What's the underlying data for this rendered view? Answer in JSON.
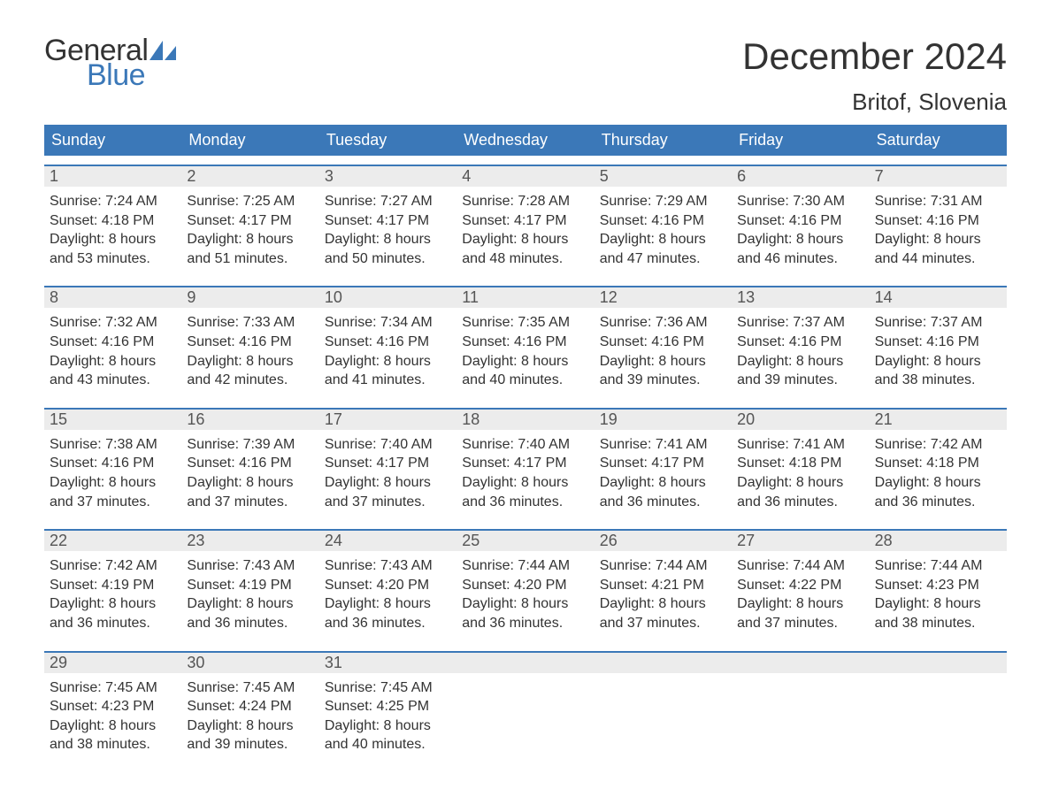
{
  "logo": {
    "text1": "General",
    "text2": "Blue"
  },
  "title": "December 2024",
  "location": "Britof, Slovenia",
  "colors": {
    "header_bg": "#3b78b8",
    "header_text": "#ffffff",
    "daynum_bg": "#ececec",
    "accent_border": "#3b78b8",
    "body_text": "#333333",
    "logo_blue": "#3b78b8"
  },
  "dayNames": [
    "Sunday",
    "Monday",
    "Tuesday",
    "Wednesday",
    "Thursday",
    "Friday",
    "Saturday"
  ],
  "weeks": [
    [
      {
        "n": "1",
        "sr": "Sunrise: 7:24 AM",
        "ss": "Sunset: 4:18 PM",
        "d1": "Daylight: 8 hours",
        "d2": "and 53 minutes."
      },
      {
        "n": "2",
        "sr": "Sunrise: 7:25 AM",
        "ss": "Sunset: 4:17 PM",
        "d1": "Daylight: 8 hours",
        "d2": "and 51 minutes."
      },
      {
        "n": "3",
        "sr": "Sunrise: 7:27 AM",
        "ss": "Sunset: 4:17 PM",
        "d1": "Daylight: 8 hours",
        "d2": "and 50 minutes."
      },
      {
        "n": "4",
        "sr": "Sunrise: 7:28 AM",
        "ss": "Sunset: 4:17 PM",
        "d1": "Daylight: 8 hours",
        "d2": "and 48 minutes."
      },
      {
        "n": "5",
        "sr": "Sunrise: 7:29 AM",
        "ss": "Sunset: 4:16 PM",
        "d1": "Daylight: 8 hours",
        "d2": "and 47 minutes."
      },
      {
        "n": "6",
        "sr": "Sunrise: 7:30 AM",
        "ss": "Sunset: 4:16 PM",
        "d1": "Daylight: 8 hours",
        "d2": "and 46 minutes."
      },
      {
        "n": "7",
        "sr": "Sunrise: 7:31 AM",
        "ss": "Sunset: 4:16 PM",
        "d1": "Daylight: 8 hours",
        "d2": "and 44 minutes."
      }
    ],
    [
      {
        "n": "8",
        "sr": "Sunrise: 7:32 AM",
        "ss": "Sunset: 4:16 PM",
        "d1": "Daylight: 8 hours",
        "d2": "and 43 minutes."
      },
      {
        "n": "9",
        "sr": "Sunrise: 7:33 AM",
        "ss": "Sunset: 4:16 PM",
        "d1": "Daylight: 8 hours",
        "d2": "and 42 minutes."
      },
      {
        "n": "10",
        "sr": "Sunrise: 7:34 AM",
        "ss": "Sunset: 4:16 PM",
        "d1": "Daylight: 8 hours",
        "d2": "and 41 minutes."
      },
      {
        "n": "11",
        "sr": "Sunrise: 7:35 AM",
        "ss": "Sunset: 4:16 PM",
        "d1": "Daylight: 8 hours",
        "d2": "and 40 minutes."
      },
      {
        "n": "12",
        "sr": "Sunrise: 7:36 AM",
        "ss": "Sunset: 4:16 PM",
        "d1": "Daylight: 8 hours",
        "d2": "and 39 minutes."
      },
      {
        "n": "13",
        "sr": "Sunrise: 7:37 AM",
        "ss": "Sunset: 4:16 PM",
        "d1": "Daylight: 8 hours",
        "d2": "and 39 minutes."
      },
      {
        "n": "14",
        "sr": "Sunrise: 7:37 AM",
        "ss": "Sunset: 4:16 PM",
        "d1": "Daylight: 8 hours",
        "d2": "and 38 minutes."
      }
    ],
    [
      {
        "n": "15",
        "sr": "Sunrise: 7:38 AM",
        "ss": "Sunset: 4:16 PM",
        "d1": "Daylight: 8 hours",
        "d2": "and 37 minutes."
      },
      {
        "n": "16",
        "sr": "Sunrise: 7:39 AM",
        "ss": "Sunset: 4:16 PM",
        "d1": "Daylight: 8 hours",
        "d2": "and 37 minutes."
      },
      {
        "n": "17",
        "sr": "Sunrise: 7:40 AM",
        "ss": "Sunset: 4:17 PM",
        "d1": "Daylight: 8 hours",
        "d2": "and 37 minutes."
      },
      {
        "n": "18",
        "sr": "Sunrise: 7:40 AM",
        "ss": "Sunset: 4:17 PM",
        "d1": "Daylight: 8 hours",
        "d2": "and 36 minutes."
      },
      {
        "n": "19",
        "sr": "Sunrise: 7:41 AM",
        "ss": "Sunset: 4:17 PM",
        "d1": "Daylight: 8 hours",
        "d2": "and 36 minutes."
      },
      {
        "n": "20",
        "sr": "Sunrise: 7:41 AM",
        "ss": "Sunset: 4:18 PM",
        "d1": "Daylight: 8 hours",
        "d2": "and 36 minutes."
      },
      {
        "n": "21",
        "sr": "Sunrise: 7:42 AM",
        "ss": "Sunset: 4:18 PM",
        "d1": "Daylight: 8 hours",
        "d2": "and 36 minutes."
      }
    ],
    [
      {
        "n": "22",
        "sr": "Sunrise: 7:42 AM",
        "ss": "Sunset: 4:19 PM",
        "d1": "Daylight: 8 hours",
        "d2": "and 36 minutes."
      },
      {
        "n": "23",
        "sr": "Sunrise: 7:43 AM",
        "ss": "Sunset: 4:19 PM",
        "d1": "Daylight: 8 hours",
        "d2": "and 36 minutes."
      },
      {
        "n": "24",
        "sr": "Sunrise: 7:43 AM",
        "ss": "Sunset: 4:20 PM",
        "d1": "Daylight: 8 hours",
        "d2": "and 36 minutes."
      },
      {
        "n": "25",
        "sr": "Sunrise: 7:44 AM",
        "ss": "Sunset: 4:20 PM",
        "d1": "Daylight: 8 hours",
        "d2": "and 36 minutes."
      },
      {
        "n": "26",
        "sr": "Sunrise: 7:44 AM",
        "ss": "Sunset: 4:21 PM",
        "d1": "Daylight: 8 hours",
        "d2": "and 37 minutes."
      },
      {
        "n": "27",
        "sr": "Sunrise: 7:44 AM",
        "ss": "Sunset: 4:22 PM",
        "d1": "Daylight: 8 hours",
        "d2": "and 37 minutes."
      },
      {
        "n": "28",
        "sr": "Sunrise: 7:44 AM",
        "ss": "Sunset: 4:23 PM",
        "d1": "Daylight: 8 hours",
        "d2": "and 38 minutes."
      }
    ],
    [
      {
        "n": "29",
        "sr": "Sunrise: 7:45 AM",
        "ss": "Sunset: 4:23 PM",
        "d1": "Daylight: 8 hours",
        "d2": "and 38 minutes."
      },
      {
        "n": "30",
        "sr": "Sunrise: 7:45 AM",
        "ss": "Sunset: 4:24 PM",
        "d1": "Daylight: 8 hours",
        "d2": "and 39 minutes."
      },
      {
        "n": "31",
        "sr": "Sunrise: 7:45 AM",
        "ss": "Sunset: 4:25 PM",
        "d1": "Daylight: 8 hours",
        "d2": "and 40 minutes."
      },
      null,
      null,
      null,
      null
    ]
  ]
}
